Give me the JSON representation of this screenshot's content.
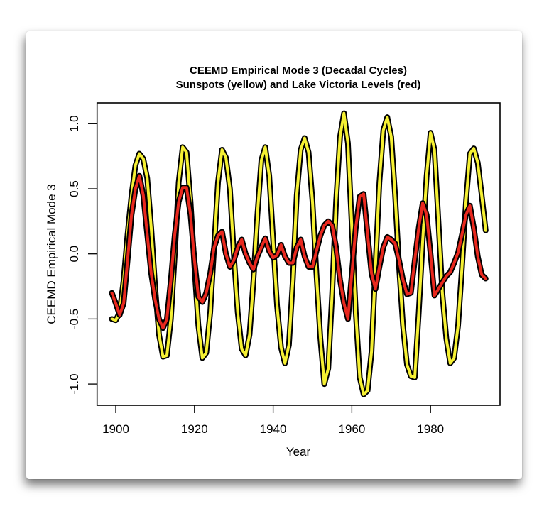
{
  "chart_data": {
    "type": "line",
    "title": "CEEMD Empirical Mode 3 (Decadal Cycles)",
    "subtitle": "Sunspots (yellow) and Lake Victoria Levels (red)",
    "xlabel": "Year",
    "ylabel": "CEEMD Empirical Mode 3",
    "xlim": [
      1896,
      1997
    ],
    "ylim": [
      -1.15,
      1.15
    ],
    "xticks": [
      1900,
      1920,
      1940,
      1960,
      1980
    ],
    "xtick_labels": [
      "1900",
      "1920",
      "1940",
      "1960",
      "1980"
    ],
    "yticks": [
      1.0,
      0.5,
      0.0,
      -0.5,
      -1.0
    ],
    "ytick_labels": [
      "1.0",
      "0.5",
      "0.0",
      "-0.5",
      "-1.0"
    ],
    "grid": false,
    "legend": "none",
    "x": [
      1899,
      1900,
      1901,
      1902,
      1903,
      1904,
      1905,
      1906,
      1907,
      1908,
      1909,
      1910,
      1911,
      1912,
      1913,
      1914,
      1915,
      1916,
      1917,
      1918,
      1919,
      1920,
      1921,
      1922,
      1923,
      1924,
      1925,
      1926,
      1927,
      1928,
      1929,
      1930,
      1931,
      1932,
      1933,
      1934,
      1935,
      1936,
      1937,
      1938,
      1939,
      1940,
      1941,
      1942,
      1943,
      1944,
      1945,
      1946,
      1947,
      1948,
      1949,
      1950,
      1951,
      1952,
      1953,
      1954,
      1955,
      1956,
      1957,
      1958,
      1959,
      1960,
      1961,
      1962,
      1963,
      1964,
      1965,
      1966,
      1967,
      1968,
      1969,
      1970,
      1971,
      1972,
      1973,
      1974,
      1975,
      1976,
      1977,
      1978,
      1979,
      1980,
      1981,
      1982,
      1983,
      1984,
      1985,
      1986,
      1987,
      1988,
      1989,
      1990,
      1991,
      1992,
      1993,
      1994
    ],
    "series": [
      {
        "name": "Sunspots",
        "color": "#f5f033",
        "outline": "#000000",
        "values": [
          -0.5,
          -0.51,
          -0.45,
          -0.2,
          0.15,
          0.45,
          0.68,
          0.77,
          0.73,
          0.58,
          0.2,
          -0.25,
          -0.62,
          -0.79,
          -0.78,
          -0.5,
          0.0,
          0.55,
          0.82,
          0.78,
          0.4,
          -0.1,
          -0.55,
          -0.8,
          -0.76,
          -0.45,
          0.05,
          0.55,
          0.8,
          0.74,
          0.5,
          0.0,
          -0.45,
          -0.73,
          -0.78,
          -0.62,
          -0.2,
          0.3,
          0.72,
          0.82,
          0.6,
          0.1,
          -0.4,
          -0.72,
          -0.84,
          -0.7,
          -0.2,
          0.45,
          0.8,
          0.89,
          0.78,
          0.4,
          -0.15,
          -0.65,
          -1.0,
          -0.88,
          -0.3,
          0.4,
          0.9,
          1.08,
          0.85,
          0.2,
          -0.45,
          -0.95,
          -1.08,
          -1.05,
          -0.75,
          -0.1,
          0.55,
          0.95,
          1.05,
          0.9,
          0.45,
          -0.1,
          -0.55,
          -0.85,
          -0.94,
          -0.95,
          -0.45,
          0.1,
          0.6,
          0.93,
          0.8,
          0.25,
          -0.3,
          -0.65,
          -0.84,
          -0.8,
          -0.55,
          -0.1,
          0.4,
          0.77,
          0.81,
          0.7,
          0.45,
          0.18
        ]
      },
      {
        "name": "Lake Victoria Levels",
        "color": "#e8281e",
        "outline": "#000000",
        "values": [
          -0.3,
          -0.38,
          -0.47,
          -0.38,
          -0.05,
          0.3,
          0.5,
          0.6,
          0.45,
          0.15,
          -0.15,
          -0.35,
          -0.5,
          -0.57,
          -0.5,
          -0.2,
          0.15,
          0.4,
          0.51,
          0.51,
          0.3,
          -0.05,
          -0.33,
          -0.37,
          -0.3,
          -0.15,
          0.05,
          0.14,
          0.17,
          0.0,
          -0.1,
          -0.05,
          0.05,
          0.11,
          0.0,
          -0.07,
          -0.12,
          -0.02,
          0.05,
          0.12,
          0.02,
          -0.03,
          -0.01,
          0.07,
          -0.02,
          -0.07,
          -0.07,
          0.05,
          0.11,
          -0.02,
          -0.1,
          -0.1,
          0.02,
          0.14,
          0.22,
          0.25,
          0.22,
          0.05,
          -0.2,
          -0.38,
          -0.5,
          -0.15,
          0.2,
          0.44,
          0.46,
          0.15,
          -0.15,
          -0.27,
          -0.1,
          0.05,
          0.13,
          0.11,
          0.08,
          -0.05,
          -0.2,
          -0.31,
          -0.3,
          -0.05,
          0.2,
          0.39,
          0.3,
          0.0,
          -0.32,
          -0.27,
          -0.22,
          -0.17,
          -0.14,
          -0.07,
          0.01,
          0.15,
          0.3,
          0.37,
          0.2,
          -0.02,
          -0.16,
          -0.19
        ]
      }
    ]
  }
}
